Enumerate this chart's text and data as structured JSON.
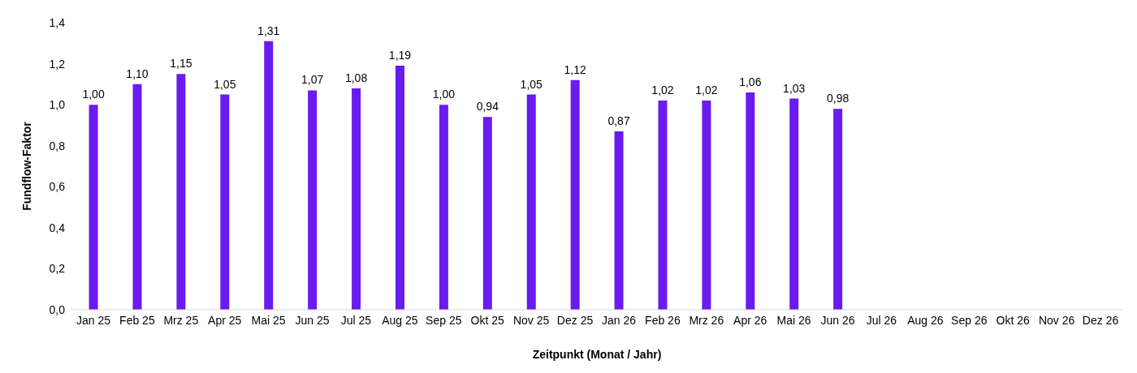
{
  "chart_data": {
    "type": "bar",
    "xlabel": "Zeitpunkt (Monat / Jahr)",
    "ylabel": "Fundflow-Faktor",
    "categories": [
      "Jan 25",
      "Feb 25",
      "Mrz 25",
      "Apr 25",
      "Mai 25",
      "Jun 25",
      "Jul 25",
      "Aug 25",
      "Sep 25",
      "Okt 25",
      "Nov 25",
      "Dez 25",
      "Jan 26",
      "Feb 26",
      "Mrz 26",
      "Apr 26",
      "Mai 26",
      "Jun 26",
      "Jul 26",
      "Aug 26",
      "Sep 26",
      "Okt 26",
      "Nov 26",
      "Dez 26"
    ],
    "values": [
      1.0,
      1.1,
      1.15,
      1.05,
      1.31,
      1.07,
      1.08,
      1.19,
      1.0,
      0.94,
      1.05,
      1.12,
      0.87,
      1.02,
      1.02,
      1.06,
      1.03,
      0.98,
      null,
      null,
      null,
      null,
      null,
      null
    ],
    "value_labels": [
      "1,00",
      "1,10",
      "1,15",
      "1,05",
      "1,31",
      "1,07",
      "1,08",
      "1,19",
      "1,00",
      "0,94",
      "1,05",
      "1,12",
      "0,87",
      "1,02",
      "1,02",
      "1,06",
      "1,03",
      "0,98",
      null,
      null,
      null,
      null,
      null,
      null
    ],
    "color": "#6a1bef",
    "ylim": [
      0,
      1.4
    ],
    "yticks": [
      {
        "value": 0,
        "label": "0,0"
      },
      {
        "value": 0.2,
        "label": "0,2"
      },
      {
        "value": 0.4,
        "label": "0,4"
      },
      {
        "value": 0.6,
        "label": "0,6"
      },
      {
        "value": 0.8,
        "label": "0,8"
      },
      {
        "value": 1.0,
        "label": "1,0"
      },
      {
        "value": 1.2,
        "label": "1,2"
      },
      {
        "value": 1.4,
        "label": "1,4"
      }
    ],
    "grid": false,
    "legend": false
  }
}
